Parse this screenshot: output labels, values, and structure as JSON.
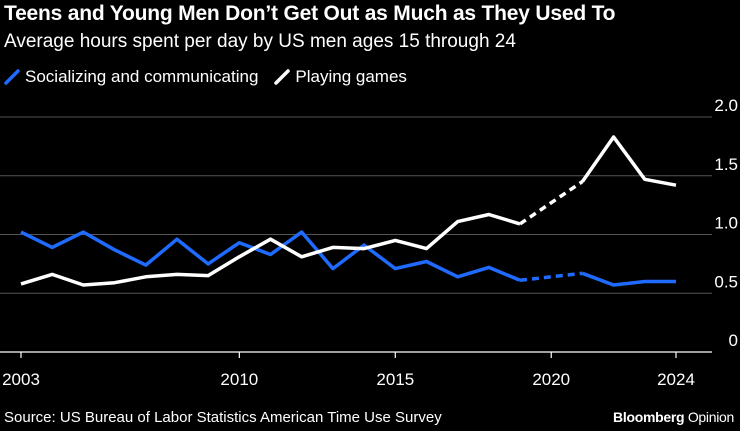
{
  "header": {
    "title": "Teens and Young Men Don’t Get Out as Much as They Used To",
    "subtitle": "Average hours spent per day by US men ages 15 through 24"
  },
  "footer": {
    "source": "Source: US Bureau of Labor Statistics American Time Use Survey",
    "brand_main": "Bloomberg",
    "brand_opinion": "Opinion"
  },
  "colors": {
    "background": "#000000",
    "socializing": "#1f6bff",
    "games": "#ffffff",
    "grid": "#555555",
    "text": "#ffffff"
  },
  "chart_data": {
    "type": "line",
    "title": "Teens and Young Men Don’t Get Out as Much as They Used To",
    "subtitle": "Average hours spent per day by US men ages 15 through 24",
    "xlabel": "",
    "ylabel": "",
    "xlim": [
      2003,
      2024
    ],
    "ylim": [
      0,
      2.0
    ],
    "x_ticks": [
      2003,
      2010,
      2015,
      2020,
      2024
    ],
    "x_tick_labels": [
      "2003",
      "2010",
      "2015",
      "2020",
      "2024"
    ],
    "y_ticks": [
      0,
      0.5,
      1.0,
      1.5,
      2.0
    ],
    "y_tick_labels": [
      "0",
      "0.5",
      "1.0",
      "1.5",
      "2.0"
    ],
    "grid": true,
    "legend_position": "top-left",
    "gap_years": [
      2019,
      2021
    ],
    "series": [
      {
        "name": "Socializing and communicating",
        "color": "#1f6bff",
        "x": [
          2003,
          2004,
          2005,
          2006,
          2007,
          2008,
          2009,
          2010,
          2011,
          2012,
          2013,
          2014,
          2015,
          2016,
          2017,
          2018,
          2019,
          2021,
          2022,
          2023,
          2024
        ],
        "values": [
          1.02,
          0.89,
          1.02,
          0.87,
          0.74,
          0.96,
          0.75,
          0.93,
          0.83,
          1.02,
          0.71,
          0.91,
          0.71,
          0.77,
          0.64,
          0.72,
          0.61,
          0.67,
          0.57,
          0.6,
          0.6
        ]
      },
      {
        "name": "Playing games",
        "color": "#ffffff",
        "x": [
          2003,
          2004,
          2005,
          2006,
          2007,
          2008,
          2009,
          2010,
          2011,
          2012,
          2013,
          2014,
          2015,
          2016,
          2017,
          2018,
          2019,
          2021,
          2022,
          2023,
          2024
        ],
        "values": [
          0.58,
          0.66,
          0.57,
          0.59,
          0.64,
          0.66,
          0.65,
          0.81,
          0.96,
          0.81,
          0.89,
          0.88,
          0.95,
          0.88,
          1.11,
          1.17,
          1.09,
          1.45,
          1.83,
          1.47,
          1.42
        ]
      }
    ]
  }
}
